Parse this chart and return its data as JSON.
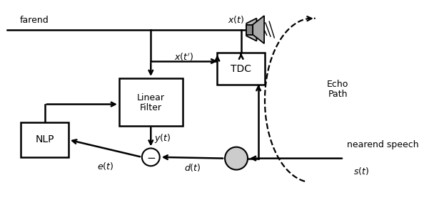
{
  "bg_color": "#ffffff",
  "line_color": "#000000",
  "farend_label": "farend",
  "xt_label": "$x(t)$",
  "xtp_label": "$x(t')$",
  "yt_label": "$y(t)$",
  "et_label": "$e(t)$",
  "dt_label": "$d(t)$",
  "st_label": "$s(t)$",
  "tdc_label": "TDC",
  "lf_label1": "Linear",
  "lf_label2": "Filter",
  "nlp_label": "NLP",
  "echo_label1": "Echo",
  "echo_label2": "Path",
  "nearend_label": "nearend speech",
  "fig_width": 5.94,
  "fig_height": 2.98,
  "dpi": 100
}
